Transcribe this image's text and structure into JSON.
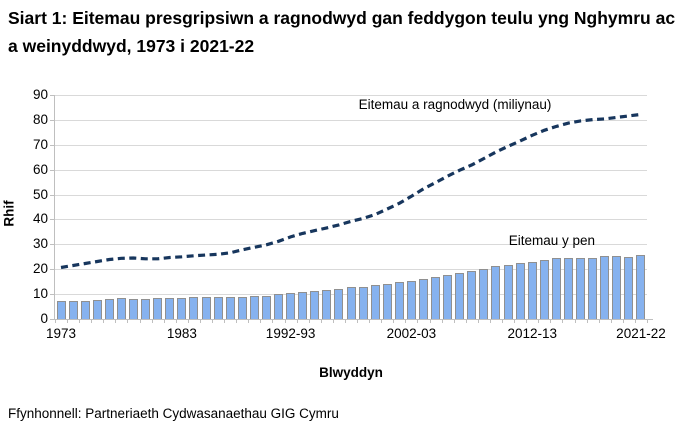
{
  "title": "Siart 1: Eitemau presgripsiwn a ragnodwyd gan feddygon teulu yng Nghymru ac a weinyddwyd, 1973 i 2021-22",
  "footer": "Ffynhonnell: Partneriaeth Cydwasanaethau GIG Cymru",
  "chart_data": {
    "type": "bar+line",
    "title": "Siart 1: Eitemau presgripsiwn a ragnodwyd gan feddygon teulu yng Nghymru ac a weinyddwyd, 1973 i 2021-22",
    "xlabel": "Blwyddyn",
    "ylabel": "Rhif",
    "ylim": [
      0,
      90
    ],
    "yticks": [
      0,
      10,
      20,
      30,
      40,
      50,
      60,
      70,
      80,
      90
    ],
    "grid": "horizontal",
    "colors": {
      "bar_fill": "#86b2ef",
      "bar_border": "#909090",
      "line": "#17365d",
      "gridline": "#d9d9d9",
      "axis": "#bfbfbf"
    },
    "categories": [
      "1973",
      "1974",
      "1975",
      "1976",
      "1977",
      "1978",
      "1979",
      "1980",
      "1981",
      "1982",
      "1983",
      "1984",
      "1985",
      "1986",
      "1987",
      "1988",
      "1989",
      "1990",
      "1991",
      "1992-93",
      "1993-94",
      "1994-95",
      "1995-96",
      "1996-97",
      "1997-98",
      "1998-99",
      "1999-00",
      "2000-01",
      "2001-02",
      "2002-03",
      "2003-04",
      "2004-05",
      "2005-06",
      "2006-07",
      "2007-08",
      "2008-09",
      "2009-10",
      "2010-11",
      "2011-12",
      "2012-13",
      "2013-14",
      "2014-15",
      "2015-16",
      "2016-17",
      "2017-18",
      "2018-19",
      "2019-20",
      "2020-21",
      "2021-22"
    ],
    "xtick_indices": [
      0,
      10,
      19,
      29,
      39,
      48
    ],
    "xtick_labels": [
      "1973",
      "1983",
      "1992-93",
      "2002-03",
      "2012-13",
      "2021-22"
    ],
    "series": [
      {
        "name": "Eitemau a ragnodwyd (miliynau)",
        "type": "line",
        "style": "dashed",
        "values": [
          20.7,
          21.5,
          22.3,
          23.1,
          23.9,
          24.4,
          24.5,
          24.2,
          24.2,
          24.7,
          25.0,
          25.4,
          25.7,
          26.0,
          26.6,
          27.8,
          28.8,
          29.8,
          31.2,
          33.0,
          34.4,
          35.5,
          36.6,
          37.8,
          39.2,
          40.4,
          42.0,
          44.2,
          46.5,
          49.3,
          52.3,
          54.8,
          57.4,
          59.8,
          61.9,
          64.5,
          67.1,
          69.4,
          71.5,
          73.8,
          75.8,
          77.4,
          78.7,
          79.6,
          80.1,
          80.4,
          81.0,
          81.6,
          82.2
        ]
      },
      {
        "name": "Eitemau y pen",
        "type": "bar",
        "values": [
          7.2,
          7.4,
          7.4,
          7.8,
          8.0,
          8.3,
          8.2,
          8.2,
          8.4,
          8.5,
          8.6,
          8.7,
          8.8,
          8.9,
          8.8,
          9.0,
          9.3,
          9.4,
          10.0,
          10.5,
          11.0,
          11.3,
          11.8,
          12.0,
          12.7,
          12.8,
          13.5,
          14.0,
          14.8,
          15.4,
          16.2,
          17.0,
          17.8,
          18.3,
          19.3,
          20.2,
          21.1,
          21.8,
          22.3,
          22.9,
          23.7,
          24.4,
          24.5,
          24.6,
          24.5,
          25.4,
          25.3,
          24.8,
          25.6
        ]
      }
    ],
    "annotations": [
      {
        "text": "Eitemau a ragnodwyd (miliynau)",
        "anchor": "line-label"
      },
      {
        "text": "Eitemau y pen",
        "anchor": "bar-label"
      }
    ]
  }
}
